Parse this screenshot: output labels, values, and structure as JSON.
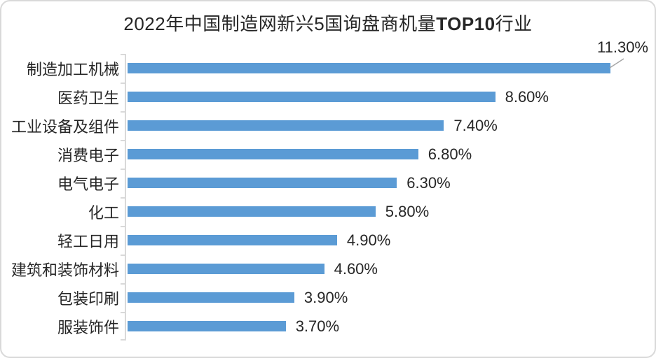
{
  "window": {
    "background": "#ffffff",
    "border_color": "#d9d9d9"
  },
  "chart_data": {
    "type": "bar",
    "orientation": "horizontal",
    "title": "2022年中国制造网新兴5国询盘商机量TOP10行业",
    "title_parts": {
      "prefix": "2022年中国制造网新兴5国询盘商机量",
      "strong": "TOP10",
      "suffix": "行业"
    },
    "categories": [
      "制造加工机械",
      "医药卫生",
      "工业设备及组件",
      "消费电子",
      "电气电子",
      "化工",
      "轻工日用",
      "建筑和装饰材料",
      "包装印刷",
      "服装饰件"
    ],
    "values": [
      11.3,
      8.6,
      7.4,
      6.8,
      6.3,
      5.8,
      4.9,
      4.6,
      3.9,
      3.7
    ],
    "data_labels": [
      "11.30%",
      "8.60%",
      "7.40%",
      "6.80%",
      "6.30%",
      "5.80%",
      "4.90%",
      "4.60%",
      "3.90%",
      "3.70%"
    ],
    "xlim": [
      0,
      12
    ],
    "grid": false,
    "legend": "none",
    "bar_color": "#5b9bd5",
    "axis_color": "#d9d9d9",
    "text_color": "#262626",
    "leader_line_color": "#a6a6a6",
    "callout": {
      "index": 0,
      "label": "11.30%"
    }
  }
}
